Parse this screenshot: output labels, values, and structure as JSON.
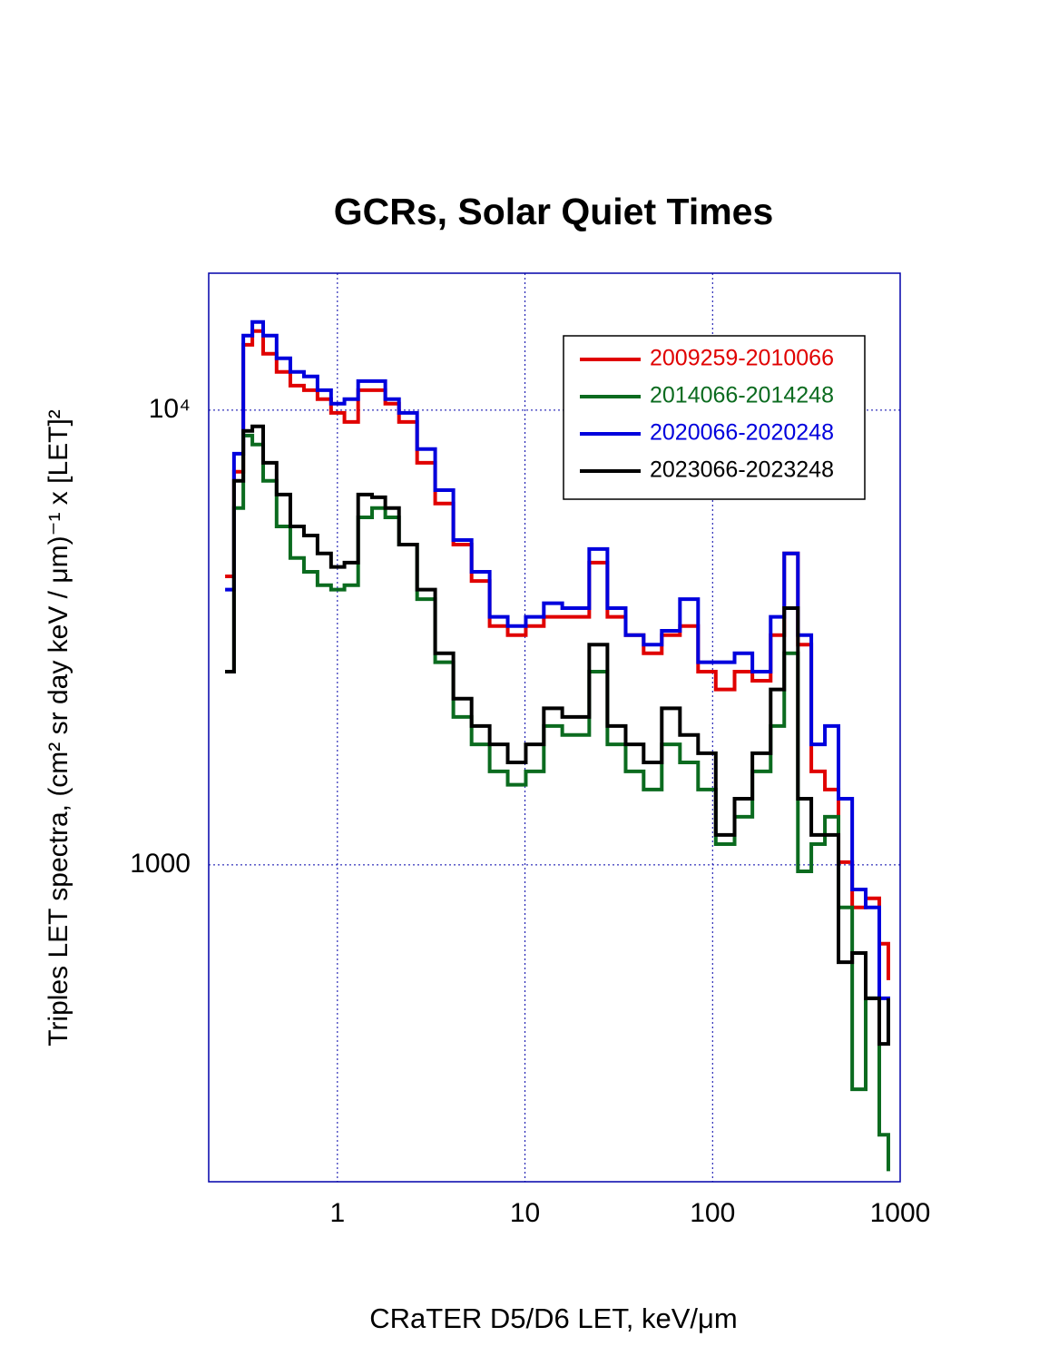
{
  "chart_data": {
    "type": "step",
    "title": "GCRs, Solar Quiet Times",
    "x_label": "CRaTER D5/D6 LET, keV/μm",
    "y_label": "Triples LET spectra, (cm² sr day keV / μm)⁻¹ x [LET]²",
    "xscale": "log",
    "yscale": "log",
    "grid": true,
    "legend_position": "upper right",
    "xlim": [
      0.206,
      1000
    ],
    "ylim": [
      201,
      20000
    ],
    "xticks": [
      1,
      10,
      100,
      1000
    ],
    "yticks": [
      1000,
      {
        "value": 10000,
        "label": "10⁴"
      }
    ],
    "x": [
      0.252,
      0.281,
      0.315,
      0.352,
      0.402,
      0.474,
      0.561,
      0.663,
      0.783,
      0.925,
      1.09,
      1.29,
      1.53,
      1.8,
      2.13,
      2.66,
      3.32,
      4.15,
      5.19,
      6.48,
      8.09,
      10.1,
      12.6,
      15.8,
      22.0,
      27.5,
      34.4,
      42.9,
      53.6,
      67.0,
      83.7,
      104,
      131,
      163,
      204,
      241,
      285,
      336,
      397,
      469,
      555,
      655,
      774,
      865
    ],
    "series": [
      {
        "name": "2009259-2010066",
        "color": "#e00000",
        "values": [
          4310,
          7320,
          13920,
          14920,
          13300,
          12130,
          11320,
          11060,
          10570,
          9860,
          9420,
          11060,
          11060,
          10330,
          9420,
          7660,
          6230,
          5060,
          4210,
          3350,
          3200,
          3350,
          3510,
          3510,
          4620,
          3510,
          3200,
          2920,
          3200,
          3350,
          2660,
          2430,
          2660,
          2540,
          3200,
          4840,
          3050,
          1605,
          1464,
          1014,
          806,
          844,
          671,
          558
        ]
      },
      {
        "name": "2014066-2014248",
        "color": "#0b6b1f",
        "values": [
          2660,
          6090,
          8790,
          8400,
          6990,
          5550,
          4730,
          4410,
          4120,
          4030,
          4120,
          5810,
          6090,
          5810,
          5060,
          3840,
          2790,
          2115,
          1840,
          1605,
          1500,
          1605,
          2020,
          1930,
          2660,
          1840,
          1605,
          1464,
          1840,
          1680,
          1464,
          1111,
          1276,
          1605,
          2020,
          2920,
          968,
          1111,
          1276,
          806,
          321,
          509,
          255,
          212
        ]
      },
      {
        "name": "2020066-2020248",
        "color": "#0000dd",
        "values": [
          4030,
          8020,
          14580,
          15620,
          14580,
          13000,
          12130,
          11860,
          11060,
          10330,
          10570,
          11580,
          11580,
          10570,
          9860,
          8210,
          6670,
          5180,
          4410,
          3510,
          3350,
          3510,
          3760,
          3670,
          4950,
          3670,
          3200,
          3050,
          3270,
          3840,
          2790,
          2790,
          2920,
          2660,
          3510,
          4840,
          3200,
          1840,
          2020,
          1398,
          883,
          806,
          509,
          443
        ]
      },
      {
        "name": "2023066-2023248",
        "color": "#000000",
        "values": [
          2660,
          6990,
          9000,
          9210,
          7660,
          6520,
          5550,
          5300,
          4840,
          4520,
          4620,
          6520,
          6430,
          6090,
          5060,
          4030,
          2920,
          2320,
          2020,
          1840,
          1680,
          1840,
          2210,
          2115,
          3050,
          2020,
          1840,
          1680,
          2210,
          1930,
          1760,
          1164,
          1398,
          1760,
          2430,
          3670,
          1398,
          1164,
          1164,
          611,
          640,
          509,
          404,
          509
        ]
      }
    ]
  }
}
